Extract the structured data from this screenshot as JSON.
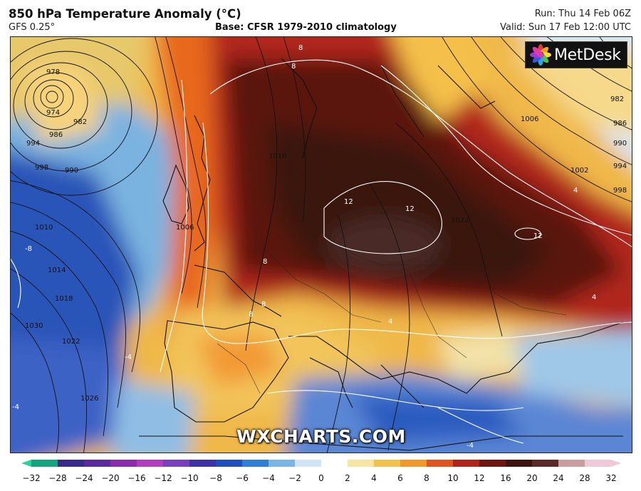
{
  "header": {
    "title": "850 hPa Temperature Anomaly (°C)",
    "subtitle": "GFS 0.25°",
    "base": "Base: CFSR 1979-2010 climatology",
    "run": "Run: Thu 14 Feb 06Z",
    "valid": "Valid: Sun 17 Feb 12:00 UTC"
  },
  "logo": {
    "text": "MetDesk"
  },
  "watermark": "WXCHARTS.COM",
  "colorbar": {
    "ticks": [
      "−32",
      "−28",
      "−24",
      "−20",
      "−16",
      "−12",
      "−10",
      "−8",
      "−6",
      "−4",
      "−2",
      "0",
      "2",
      "4",
      "6",
      "8",
      "10",
      "12",
      "16",
      "20",
      "24",
      "28",
      "32"
    ],
    "colors": [
      "#2bd19a",
      "#15a57e",
      "#3a2a8c",
      "#5b2aa0",
      "#8a2bb0",
      "#b33cc0",
      "#7a3fbf",
      "#3d33a6",
      "#1f4fbf",
      "#2f7fd6",
      "#78b6e8",
      "#cfe5f6",
      "#ffffff",
      "#f7e4a0",
      "#f2c24a",
      "#f2982a",
      "#e2541f",
      "#b3231a",
      "#6e1510",
      "#3e140f",
      "#5a2a26",
      "#c89ea0",
      "#f0c8d8"
    ]
  },
  "map_labels": {
    "isobars": [
      "978",
      "974",
      "982",
      "986",
      "990",
      "994",
      "998",
      "1010",
      "1014",
      "1018",
      "1022",
      "1030",
      "1026",
      "1006",
      "1010",
      "1022",
      "1006",
      "1002",
      "982",
      "986",
      "990",
      "994",
      "998"
    ],
    "anomaly": [
      "8",
      "8",
      "8",
      "8",
      "8",
      "12",
      "12",
      "12",
      "-8",
      "4",
      "4",
      "-4",
      "-4",
      "-4",
      "4"
    ]
  }
}
